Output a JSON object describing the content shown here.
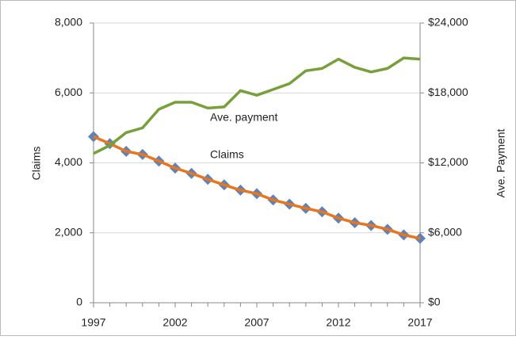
{
  "chart_data": {
    "type": "line",
    "x": [
      1997,
      1998,
      1999,
      2000,
      2001,
      2002,
      2003,
      2004,
      2005,
      2006,
      2007,
      2008,
      2009,
      2010,
      2011,
      2012,
      2013,
      2014,
      2015,
      2016,
      2017
    ],
    "xlim": [
      1997,
      2017
    ],
    "xticks": [
      1997,
      2002,
      2007,
      2012,
      2017
    ],
    "ylim": [
      0,
      8000
    ],
    "yticks": [
      0,
      {
        "value": 2000,
        "label": "2,000"
      },
      {
        "value": 4000,
        "label": "4,000"
      },
      {
        "value": 6000,
        "label": "6,000"
      },
      {
        "value": 8000,
        "label": "8,000"
      }
    ],
    "y2lim": [
      0,
      24000
    ],
    "y2ticks": [
      {
        "value": 0,
        "label": "$0"
      },
      {
        "value": 6000,
        "label": "$6,000"
      },
      {
        "value": 12000,
        "label": "$12,000"
      },
      {
        "value": 18000,
        "label": "$18,000"
      },
      {
        "value": 24000,
        "label": "$24,000"
      }
    ],
    "ylabel": "Claims",
    "y2label": "Ave. Payment",
    "grid": true,
    "series": [
      {
        "name": "Claims",
        "color": "#e8761e",
        "marker_color": "#5f83b8",
        "values": [
          4750,
          4550,
          4330,
          4240,
          4050,
          3850,
          3700,
          3530,
          3370,
          3220,
          3120,
          2940,
          2820,
          2700,
          2600,
          2420,
          2290,
          2210,
          2100,
          1940,
          1840
        ]
      },
      {
        "name": "Ave. payment",
        "color": "#77a03c",
        "axis": "y2",
        "values": [
          12800,
          13500,
          14600,
          15000,
          16600,
          17200,
          17200,
          16700,
          16800,
          18200,
          17800,
          18300,
          18800,
          19900,
          20100,
          20900,
          20200,
          19800,
          20100,
          21000,
          20900
        ]
      }
    ]
  }
}
